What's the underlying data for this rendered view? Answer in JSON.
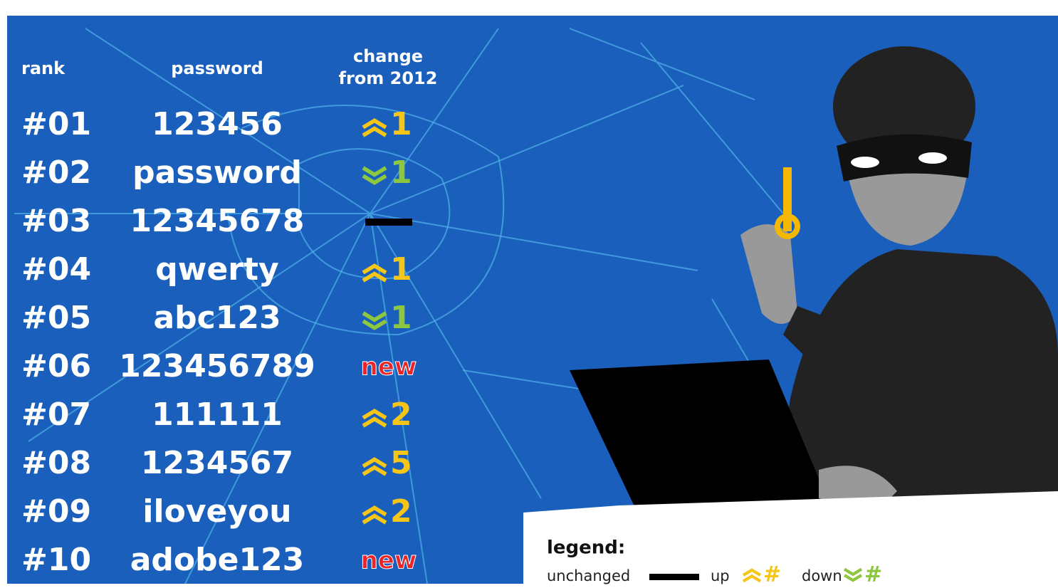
{
  "table": {
    "header": [
      "rank",
      "password",
      "change from 2012"
    ],
    "rows": [
      [
        "#01",
        "123456",
        {
          "direction": "up",
          "amount": 1
        }
      ],
      [
        "#02",
        "password",
        {
          "direction": "down",
          "amount": 1
        }
      ],
      [
        "#03",
        "12345678",
        {
          "direction": "unchanged"
        }
      ],
      [
        "#04",
        "qwerty",
        {
          "direction": "up",
          "amount": 1
        }
      ],
      [
        "#05",
        "abc123",
        {
          "direction": "down",
          "amount": 1
        }
      ],
      [
        "#06",
        "123456789",
        {
          "direction": "new",
          "label": "new"
        }
      ],
      [
        "#07",
        "111111",
        {
          "direction": "up",
          "amount": 2
        }
      ],
      [
        "#08",
        "1234567",
        {
          "direction": "up",
          "amount": 5
        }
      ],
      [
        "#09",
        "iloveyou",
        {
          "direction": "up",
          "amount": 2
        }
      ],
      [
        "#10",
        "adobe123",
        {
          "direction": "new",
          "label": "new"
        }
      ]
    ]
  },
  "legend": {
    "title": "legend:",
    "unchanged": "unchanged",
    "up": "up",
    "up_symbol": "#",
    "down": "down",
    "down_symbol": "#"
  }
}
